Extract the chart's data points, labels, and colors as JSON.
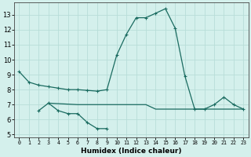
{
  "xlabel": "Humidex (Indice chaleur)",
  "background_color": "#d4f0ec",
  "grid_color": "#b8ddd8",
  "line_color": "#1a6b60",
  "x_values": [
    0,
    1,
    2,
    3,
    4,
    5,
    6,
    7,
    8,
    9,
    10,
    11,
    12,
    13,
    14,
    15,
    16,
    17,
    18,
    19,
    20,
    21,
    22,
    23
  ],
  "line1_y": [
    9.2,
    8.5,
    8.3,
    8.2,
    8.1,
    8.0,
    8.0,
    7.95,
    7.9,
    8.0,
    10.3,
    11.7,
    12.8,
    12.8,
    13.1,
    13.4,
    12.1,
    8.9,
    6.7,
    6.7,
    7.0,
    7.5,
    7.0,
    6.7
  ],
  "line2_x": [
    2,
    3,
    4,
    5,
    6,
    7,
    8,
    9
  ],
  "line2_y": [
    6.6,
    7.1,
    6.6,
    6.4,
    6.4,
    5.8,
    5.4,
    5.4
  ],
  "line3_x": [
    3,
    6,
    7,
    8,
    9,
    10,
    11,
    12,
    13,
    14,
    15,
    16,
    17,
    18,
    19,
    20,
    21,
    22,
    23
  ],
  "line3_y": [
    7.1,
    7.0,
    7.0,
    7.0,
    7.0,
    7.0,
    7.0,
    7.0,
    7.0,
    6.7,
    6.7,
    6.7,
    6.7,
    6.7,
    6.7,
    6.7,
    6.7,
    6.7,
    6.7
  ],
  "ylim": [
    4.8,
    13.8
  ],
  "xlim": [
    -0.5,
    23.5
  ],
  "yticks": [
    5,
    6,
    7,
    8,
    9,
    10,
    11,
    12,
    13
  ],
  "xtick_labels": [
    "0",
    "1",
    "2",
    "3",
    "4",
    "5",
    "6",
    "7",
    "8",
    "9",
    "10",
    "11",
    "12",
    "13",
    "14",
    "15",
    "16",
    "17",
    "18",
    "19",
    "20",
    "21",
    "22",
    "23"
  ],
  "xlabel_fontsize": 6.5,
  "ytick_fontsize": 6,
  "xtick_fontsize": 4.8,
  "linewidth": 0.9,
  "markersize": 3.0
}
